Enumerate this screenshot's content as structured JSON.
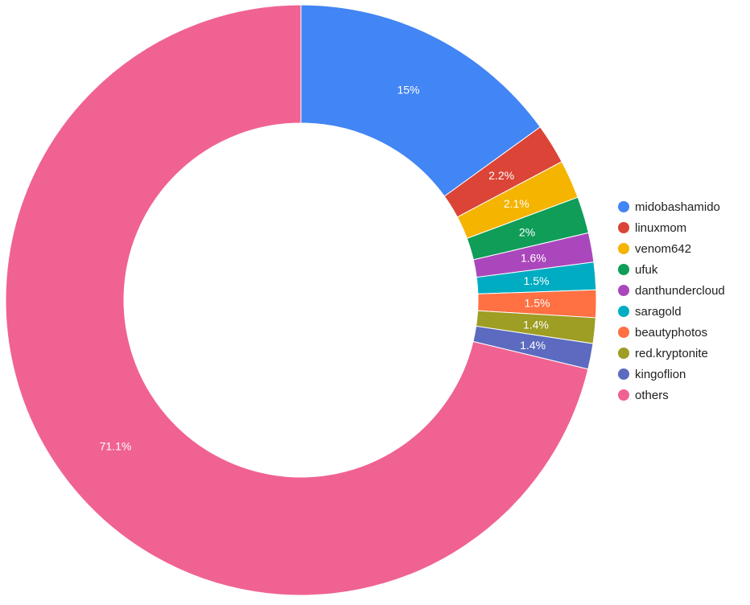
{
  "chart_data": {
    "type": "pie",
    "donut": true,
    "start_angle_deg": 0,
    "direction": "clockwise",
    "legend_position": "right",
    "slices": [
      {
        "name": "midobashamido",
        "value": 15.0,
        "label": "15%",
        "color": "#4285f4"
      },
      {
        "name": "linuxmom",
        "value": 2.2,
        "label": "2.2%",
        "color": "#db4437"
      },
      {
        "name": "venom642",
        "value": 2.1,
        "label": "2.1%",
        "color": "#f4b400"
      },
      {
        "name": "ufuk",
        "value": 2.0,
        "label": "2%",
        "color": "#0f9d58"
      },
      {
        "name": "danthundercloud",
        "value": 1.6,
        "label": "1.6%",
        "color": "#ab47bc"
      },
      {
        "name": "saragold",
        "value": 1.5,
        "label": "1.5%",
        "color": "#00acc1"
      },
      {
        "name": "beautyphotos",
        "value": 1.5,
        "label": "1.5%",
        "color": "#ff7043"
      },
      {
        "name": "red.kryptonite",
        "value": 1.4,
        "label": "1.4%",
        "color": "#9e9d24"
      },
      {
        "name": "kingoflion",
        "value": 1.4,
        "label": "1.4%",
        "color": "#5c6bc0"
      },
      {
        "name": "others",
        "value": 71.1,
        "label": "71.1%",
        "color": "#f06292"
      }
    ]
  }
}
